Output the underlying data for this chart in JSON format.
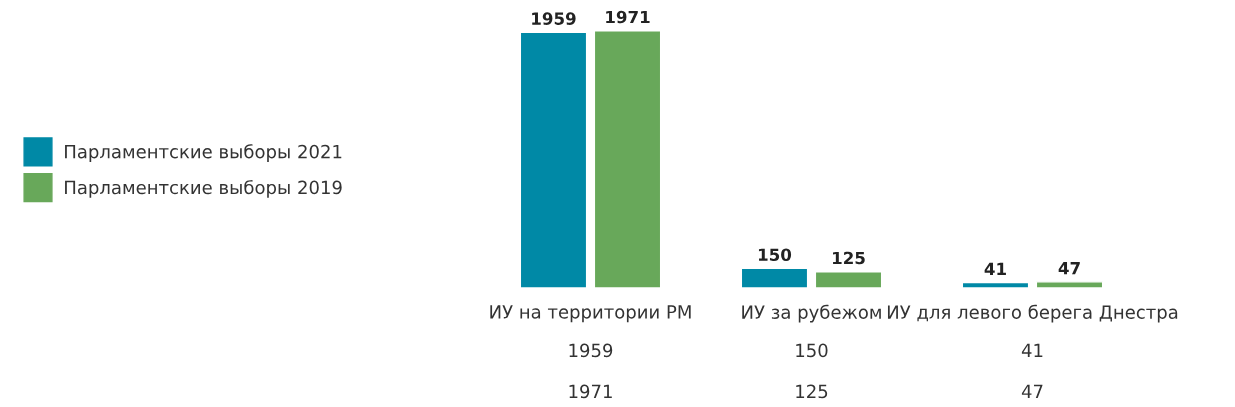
{
  "chart_data": {
    "type": "bar",
    "categories": [
      "ИУ на территории РМ",
      "ИУ за рубежом",
      "ИУ для левого берега Днестра"
    ],
    "series": [
      {
        "name": "Парламентские выборы 2021",
        "color": "#0089a6",
        "values": [
          1959,
          150,
          41
        ]
      },
      {
        "name": "Парламентские выборы 2019",
        "color": "#68a85a",
        "values": [
          1971,
          125,
          47
        ]
      }
    ],
    "annotations": [
      "1959",
      "150",
      "41",
      "1971",
      "125",
      "47"
    ],
    "data_labels": true,
    "legend": "left",
    "grid": false
  }
}
